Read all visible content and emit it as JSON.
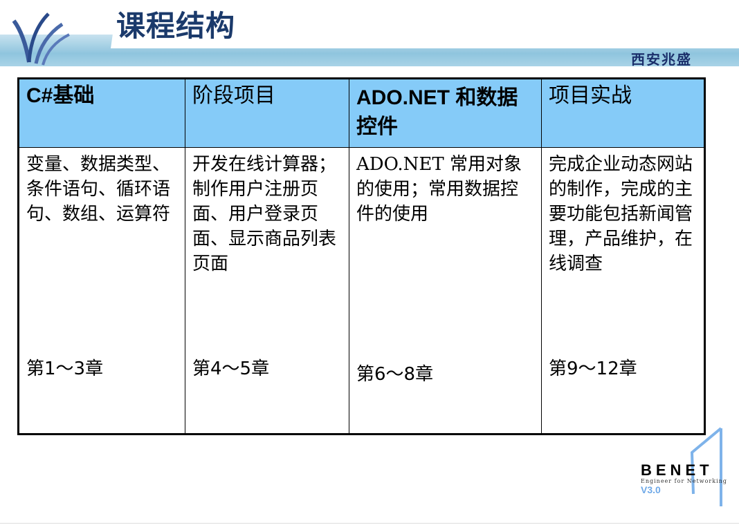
{
  "header": {
    "title": "课程结构",
    "brand": "西安兆盛"
  },
  "table": {
    "columns": [
      {
        "heading": "C#基础",
        "description": "变量、数据类型、条件语句、循环语句、数组、运算符",
        "chapters": "第1～3章"
      },
      {
        "heading": "阶段项目",
        "description": "开发在线计算器；制作用户注册页面、用户登录页面、显示商品列表页面",
        "chapters": "第4～5章"
      },
      {
        "heading": "ADO.NET 和数据控件",
        "description": "ADO.NET 常用对象的使用；常用数据控件的使用",
        "chapters": "第6～8章"
      },
      {
        "heading": "项目实战",
        "description": "完成企业动态网站的制作，完成的主要功能包括新闻管理，产品维护，在线调查",
        "chapters": "第9～12章"
      }
    ]
  },
  "footer": {
    "logo_name": "BENET",
    "logo_tagline": "Engineer for Networking",
    "version": "V3.0"
  },
  "colors": {
    "header_cell": "#85cbf8",
    "title": "#1b3a6b",
    "version": "#6fa9e8"
  }
}
